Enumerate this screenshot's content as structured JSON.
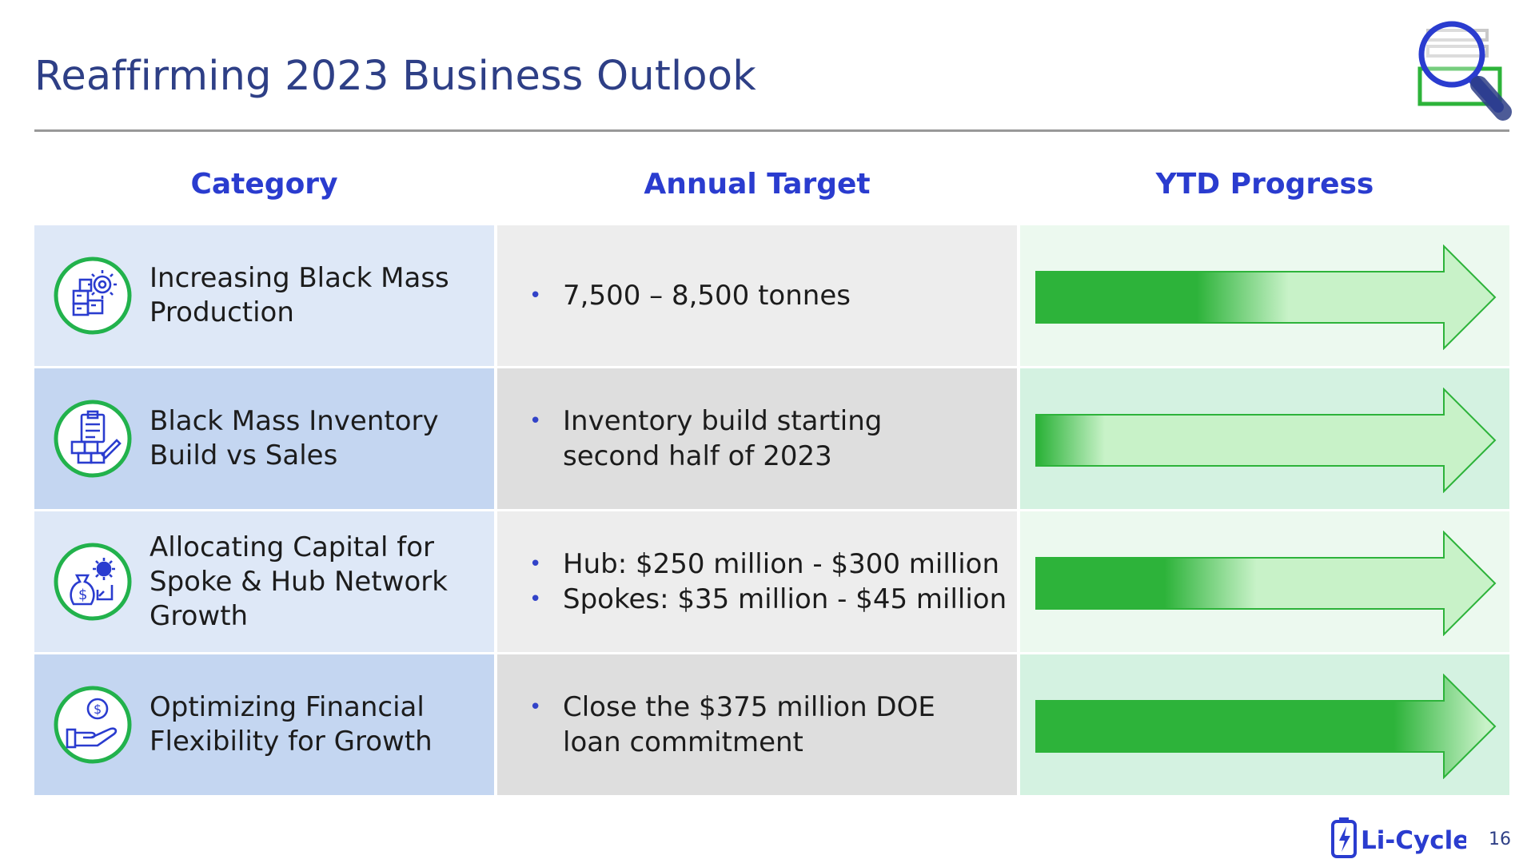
{
  "title": "Reaffirming 2023 Business Outlook",
  "headers": {
    "category": "Category",
    "target": "Annual Target",
    "progress": "YTD Progress"
  },
  "colors": {
    "accent_blue": "#2a3ccf",
    "title_blue": "#2e3f86",
    "progress_green": "#2db33a",
    "arrow_light": "#c8f2c8",
    "arrow_stroke": "#2db33a"
  },
  "rows": [
    {
      "category_line1": "Increasing Black Mass",
      "category_line2": "Production",
      "category_line3": "",
      "icon": "production-boxes-gear-icon",
      "targets": [
        "7,500 – 8,500 tonnes"
      ],
      "progress": 0.45
    },
    {
      "category_line1": "Black Mass Inventory",
      "category_line2": "Build vs Sales",
      "category_line3": "",
      "icon": "inventory-clipboard-icon",
      "targets": [
        "Inventory build starting second half of 2023"
      ],
      "progress": 0.05
    },
    {
      "category_line1": "Allocating Capital for",
      "category_line2": "Spoke & Hub Network",
      "category_line3": "Growth",
      "icon": "capital-moneybag-gear-icon",
      "targets": [
        "Hub: $250 million - $300 million",
        "Spokes: $35 million - $45 million"
      ],
      "progress": 0.38
    },
    {
      "category_line1": "Optimizing Financial",
      "category_line2": "Flexibility for Growth",
      "category_line3": "",
      "icon": "hand-coin-icon",
      "targets": [
        "Close the $375 million DOE loan commitment"
      ],
      "progress": 0.88
    }
  ],
  "footer": {
    "logo_text": "Li-Cycle",
    "page_number": "16"
  }
}
